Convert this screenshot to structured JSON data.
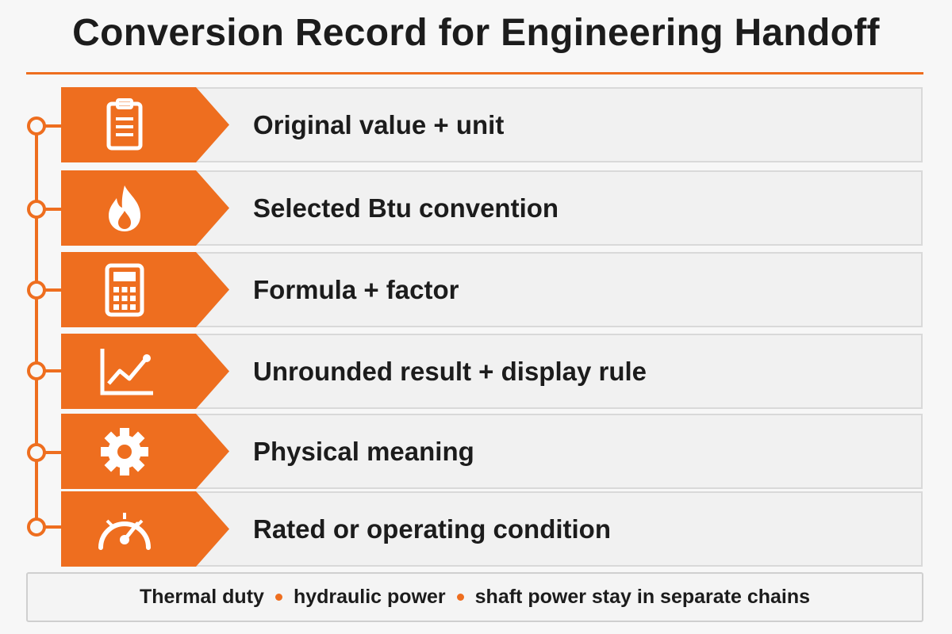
{
  "title": "Conversion Record for Engineering Handoff",
  "accent_color": "#ee6e1f",
  "items": [
    {
      "icon": "clipboard-icon",
      "label": "Original value + unit"
    },
    {
      "icon": "flame-icon",
      "label": "Selected Btu convention"
    },
    {
      "icon": "calculator-icon",
      "label": "Formula + factor"
    },
    {
      "icon": "line-chart-icon",
      "label": "Unrounded result + display rule"
    },
    {
      "icon": "gear-icon",
      "label": "Physical meaning"
    },
    {
      "icon": "gauge-icon",
      "label": "Rated or operating condition"
    }
  ],
  "footer": {
    "parts": [
      "Thermal duty",
      "hydraulic power",
      "shaft power stay in separate chains"
    ]
  }
}
